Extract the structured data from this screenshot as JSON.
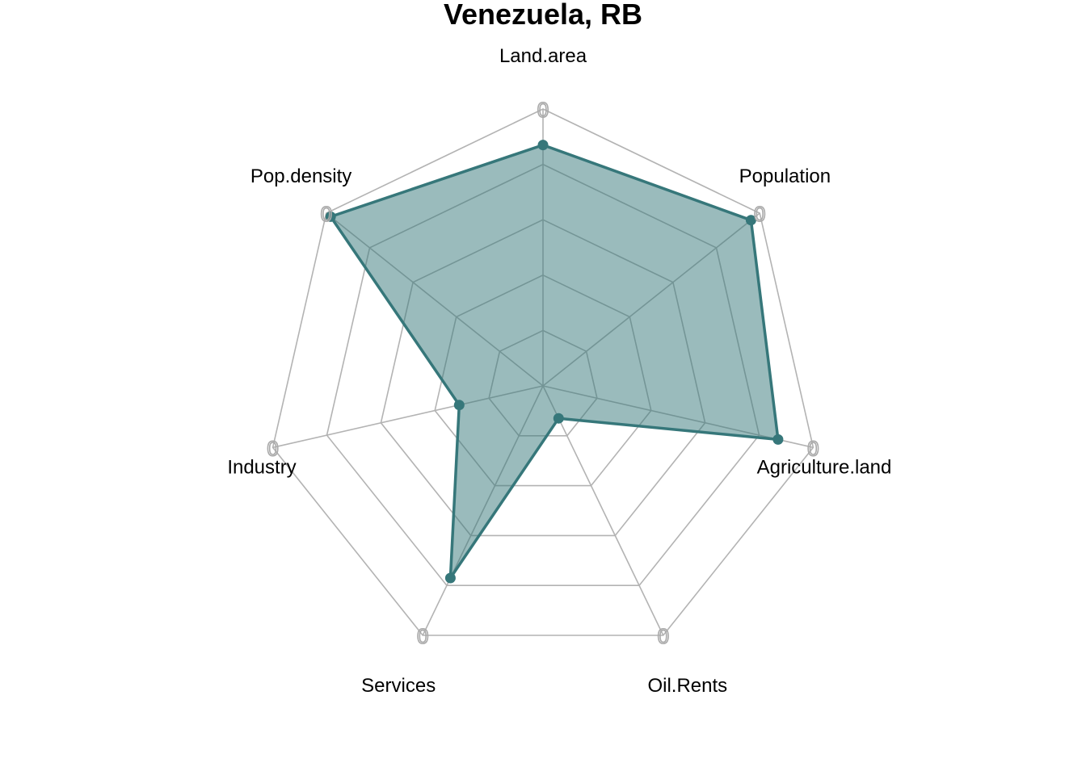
{
  "chart_data": {
    "type": "radar",
    "title": "Venezuela, RB",
    "axes": [
      "Land.area",
      "Population",
      "Agriculture.land",
      "Oil.Rents",
      "Services",
      "Industry",
      "Pop.density"
    ],
    "values": [
      0.87,
      0.96,
      0.87,
      0.13,
      0.77,
      0.31,
      0.98
    ],
    "range": [
      0,
      1
    ],
    "grid_levels": 5,
    "tick_label": "0",
    "color": "#36777a",
    "grid_color": "#b3b3b3"
  }
}
